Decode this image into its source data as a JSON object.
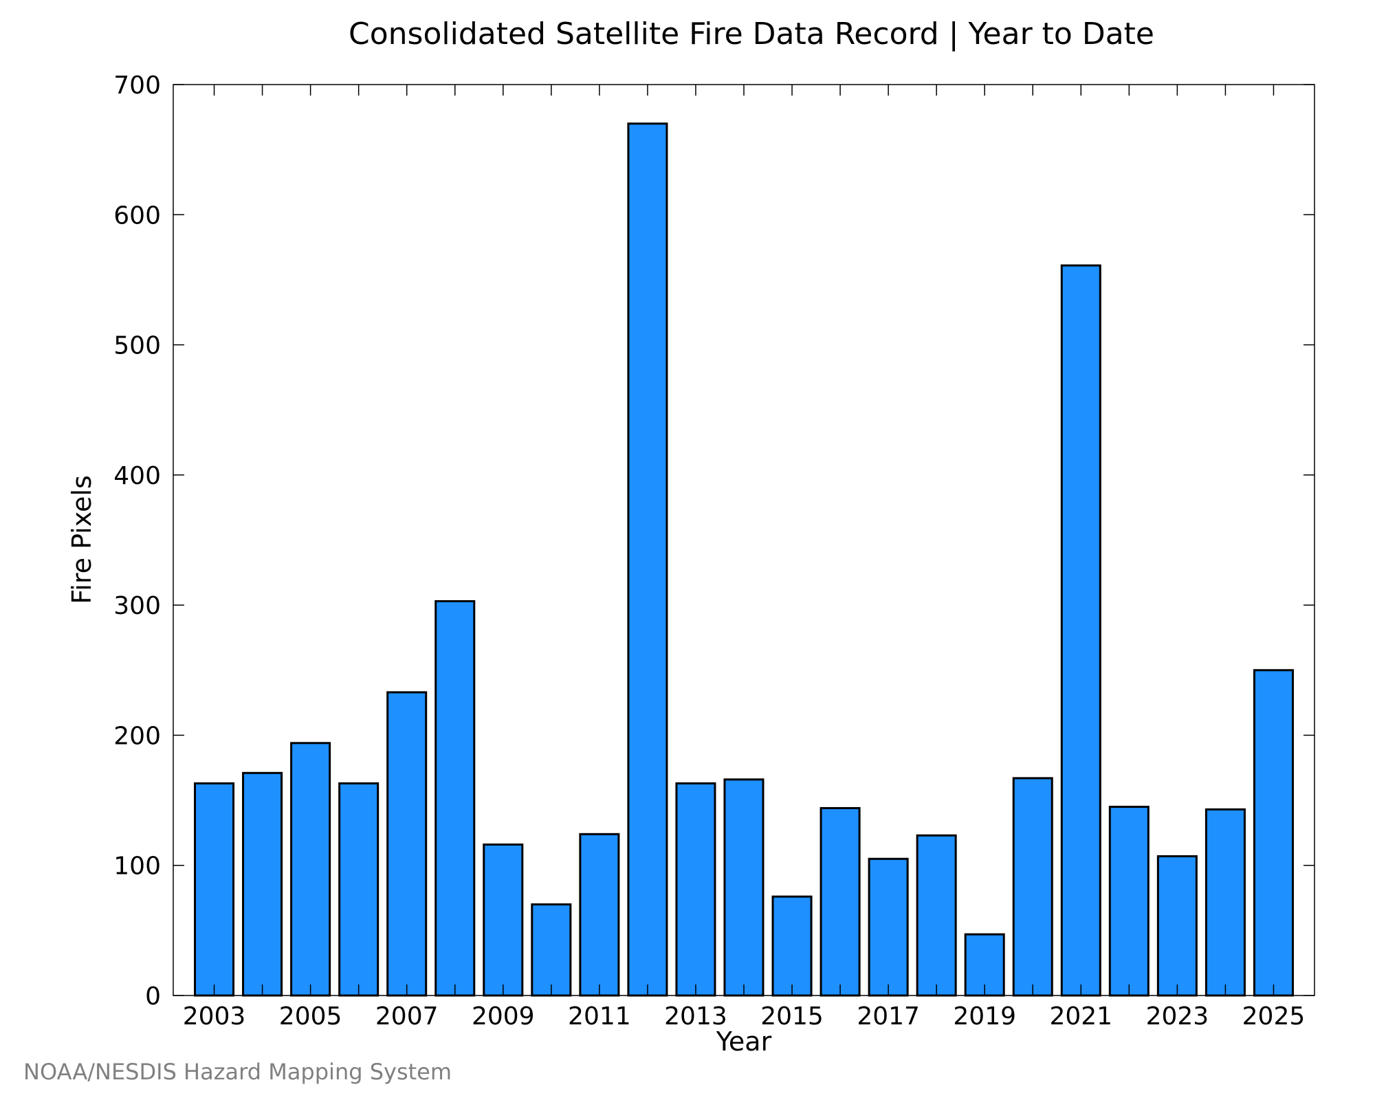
{
  "chart_data": {
    "type": "bar",
    "title": "Consolidated Satellite Fire Data Record | Year to Date",
    "xlabel": "Year",
    "ylabel": "Fire Pixels",
    "ylim": [
      0,
      700
    ],
    "yticks": [
      "0",
      "100",
      "200",
      "300",
      "400",
      "500",
      "600",
      "700"
    ],
    "xtick_labels": [
      "2003",
      "2005",
      "2007",
      "2009",
      "2011",
      "2013",
      "2015",
      "2017",
      "2019",
      "2021",
      "2023",
      "2025"
    ],
    "categories": [
      "2003",
      "2004",
      "2005",
      "2006",
      "2007",
      "2008",
      "2009",
      "2010",
      "2011",
      "2012",
      "2013",
      "2014",
      "2015",
      "2016",
      "2017",
      "2018",
      "2019",
      "2020",
      "2021",
      "2022",
      "2023",
      "2024",
      "2025"
    ],
    "values": [
      163,
      171,
      194,
      163,
      233,
      303,
      116,
      70,
      124,
      670,
      163,
      166,
      76,
      144,
      105,
      123,
      47,
      167,
      561,
      145,
      107,
      143,
      250
    ],
    "bar_color": "#1E90FF",
    "bar_edge_color": "#000000",
    "grid": false,
    "credit": "NOAA/NESDIS Hazard Mapping System"
  }
}
